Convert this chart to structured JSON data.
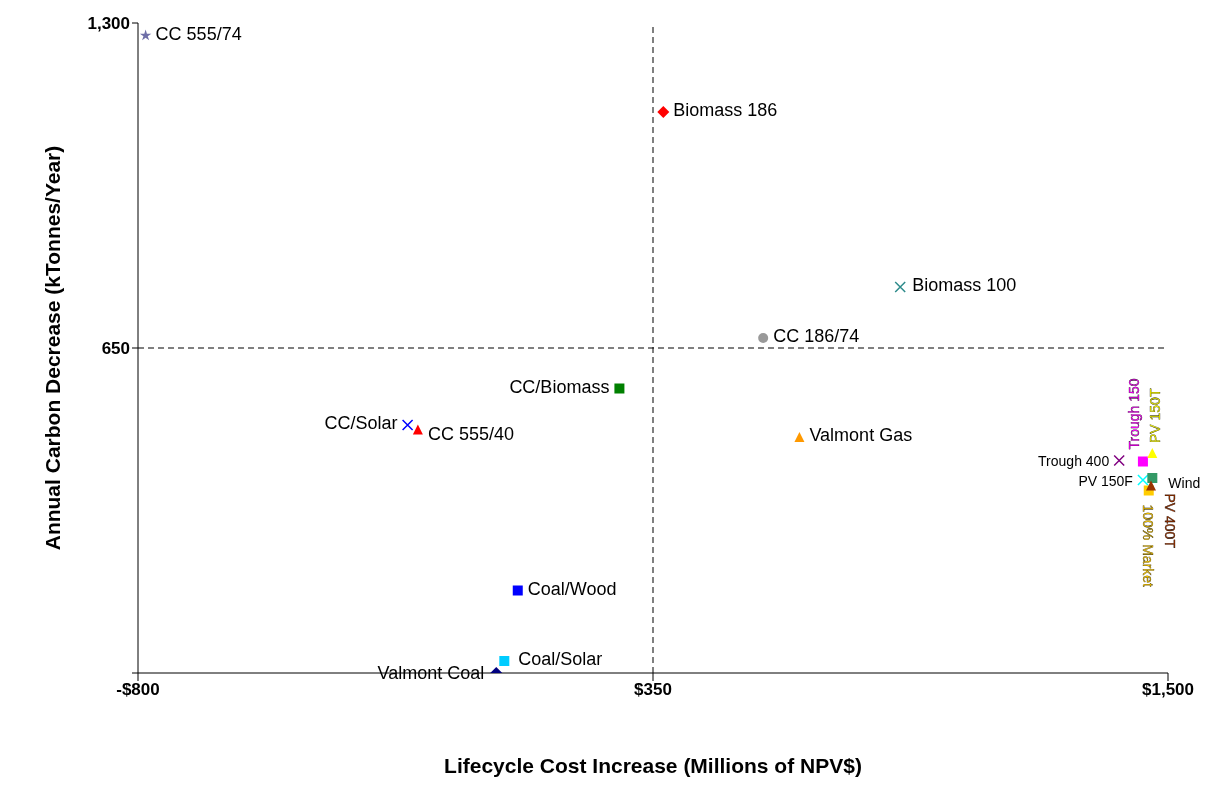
{
  "chart_data": {
    "type": "scatter",
    "xlabel": "Lifecycle Cost Increase (Millions of NPV$)",
    "ylabel": "Annual Carbon Decrease (kTonnes/Year)",
    "xlim": [
      -800,
      1500
    ],
    "xticks": [
      {
        "value": -800,
        "label": "-$800"
      },
      {
        "value": 350,
        "label": "$350"
      },
      {
        "value": 1500,
        "label": "$1,500"
      }
    ],
    "ylim": [
      0,
      1300
    ],
    "yticks": [
      {
        "value": 0,
        "label": null
      },
      650,
      {
        "value": 1300,
        "label": "1,300"
      }
    ],
    "grid": false,
    "legend": false,
    "ref_lines": [
      {
        "axis": "x",
        "value": 350,
        "line_style": "dashed",
        "color": "#000000"
      },
      {
        "axis": "y",
        "value": 650,
        "line_style": "dashed",
        "color": "#000000"
      }
    ],
    "series": [
      {
        "name": "CC 555/74",
        "color": "#6f6fa8",
        "marker": "star",
        "x": [
          -783
        ],
        "values": [
          1275
        ]
      },
      {
        "name": "Biomass 186",
        "color": "#ff0000",
        "marker": "diamond",
        "x": [
          373
        ],
        "values": [
          1122
        ]
      },
      {
        "name": "Biomass 100",
        "color": "#2e8b8b",
        "marker": "cross",
        "x": [
          902
        ],
        "values": [
          772
        ]
      },
      {
        "name": "CC 186/74",
        "color": "#999999",
        "marker": "circle",
        "x": [
          596
        ],
        "values": [
          670
        ]
      },
      {
        "name": "CC/Biomass",
        "color": "#008000",
        "marker": "square",
        "x": [
          275
        ],
        "values": [
          569
        ]
      },
      {
        "name": "CC/Solar",
        "color": "#0000ff",
        "marker": "cross",
        "x": [
          -198
        ],
        "values": [
          496
        ]
      },
      {
        "name": "CC 555/40",
        "color": "#ff0000",
        "marker": "triangle",
        "x": [
          -175
        ],
        "values": [
          487
        ]
      },
      {
        "name": "Valmont Gas",
        "color": "#ff9900",
        "marker": "triangle",
        "x": [
          677
        ],
        "values": [
          472
        ]
      },
      {
        "name": "Coal/Wood",
        "color": "#0000ff",
        "marker": "square",
        "x": [
          48
        ],
        "values": [
          165
        ]
      },
      {
        "name": "Coal/Solar",
        "color": "#00ccff",
        "marker": "square",
        "x": [
          18
        ],
        "values": [
          24
        ]
      },
      {
        "name": "Valmont Coal",
        "color": "#000080",
        "marker": "diamond",
        "x": [
          0
        ],
        "values": [
          0
        ]
      },
      {
        "name": "Trough 400",
        "color": "#800080",
        "marker": "cross",
        "x": [
          1391
        ],
        "values": [
          425
        ]
      },
      {
        "name": "Trough 150",
        "color": "#ff00ff",
        "marker": "square",
        "x": [
          1444
        ],
        "values": [
          423
        ]
      },
      {
        "name": "PV 150T",
        "color": "#ffff00",
        "marker": "triangle",
        "x": [
          1465
        ],
        "values": [
          440
        ]
      },
      {
        "name": "PV 150F",
        "color": "#00ffff",
        "marker": "cross",
        "x": [
          1444
        ],
        "values": [
          386
        ]
      },
      {
        "name": "Wind",
        "color": "#339966",
        "marker": "square",
        "x": [
          1465
        ],
        "values": [
          390
        ]
      },
      {
        "name": "100% Market",
        "color": "#ffcc00",
        "marker": "square",
        "x": [
          1457
        ],
        "values": [
          365
        ]
      },
      {
        "name": "PV 400T",
        "color": "#993300",
        "marker": "triangle",
        "x": [
          1462
        ],
        "values": [
          375
        ]
      }
    ]
  }
}
